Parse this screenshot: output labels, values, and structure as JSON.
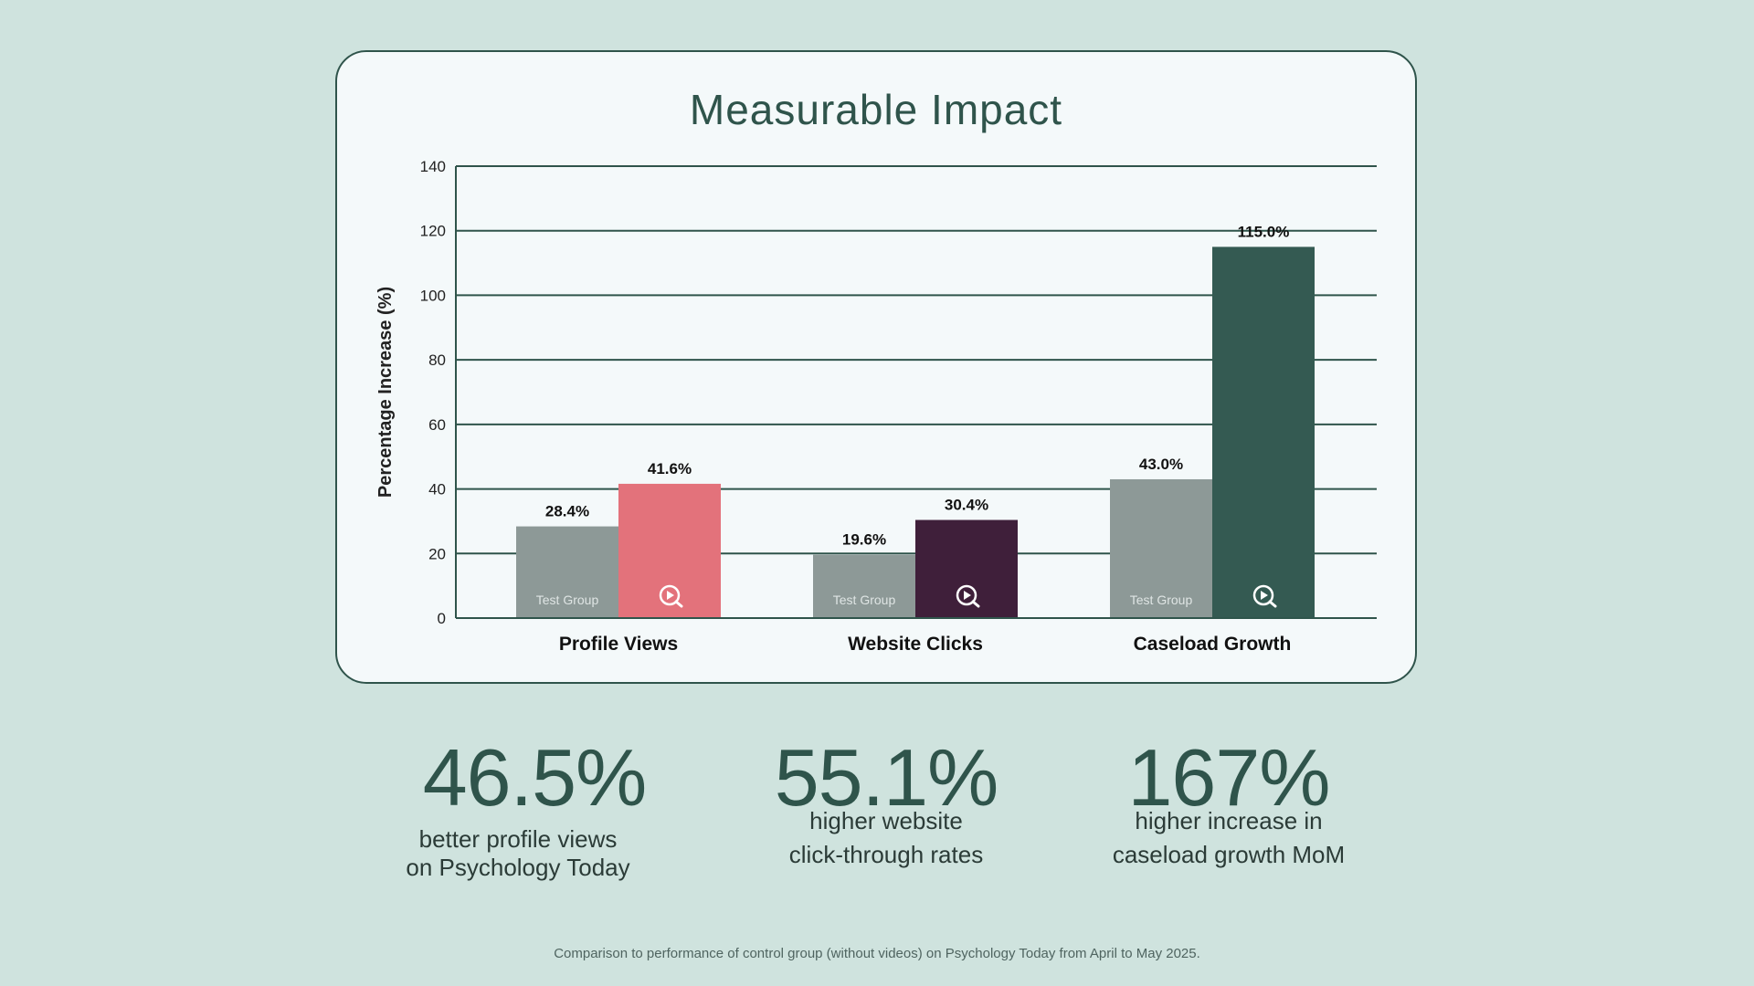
{
  "chart_data": {
    "type": "bar",
    "title": "Measurable Impact",
    "ylabel": "Percentage Increase (%)",
    "xlabel": "",
    "ylim": [
      0,
      140
    ],
    "yticks": [
      0,
      20,
      40,
      60,
      80,
      100,
      120,
      140
    ],
    "grid": true,
    "categories": [
      "Profile Views",
      "Website Clicks",
      "Caseload Growth"
    ],
    "series": [
      {
        "name": "Test Group",
        "label_in_bar": "Test Group",
        "values": [
          28.4,
          19.6,
          43.0
        ],
        "data_labels": [
          "28.4%",
          "19.6%",
          "43.0%"
        ],
        "colors": [
          "#8d9997",
          "#8d9997",
          "#8d9997"
        ]
      },
      {
        "name": "With Videos",
        "icon": "play-search-icon",
        "values": [
          41.6,
          30.4,
          115.0
        ],
        "data_labels": [
          "41.6%",
          "30.4%",
          "115.0%"
        ],
        "colors": [
          "#e3727b",
          "#3f1f3a",
          "#345a52"
        ]
      }
    ]
  },
  "stats": [
    {
      "value": "46.5%",
      "lines": [
        "better profile views",
        "on Psychology Today"
      ]
    },
    {
      "value": "55.1%",
      "lines": [
        "higher website",
        "click-through rates"
      ]
    },
    {
      "value": "167%",
      "lines": [
        "higher increase in",
        "caseload growth MoM"
      ]
    }
  ],
  "footnote": "Comparison to performance of control group (without videos) on Psychology Today from April to May 2025.",
  "colors": {
    "background": "#cfe3de",
    "card": "#f4f9fa",
    "accent": "#2f544b"
  }
}
